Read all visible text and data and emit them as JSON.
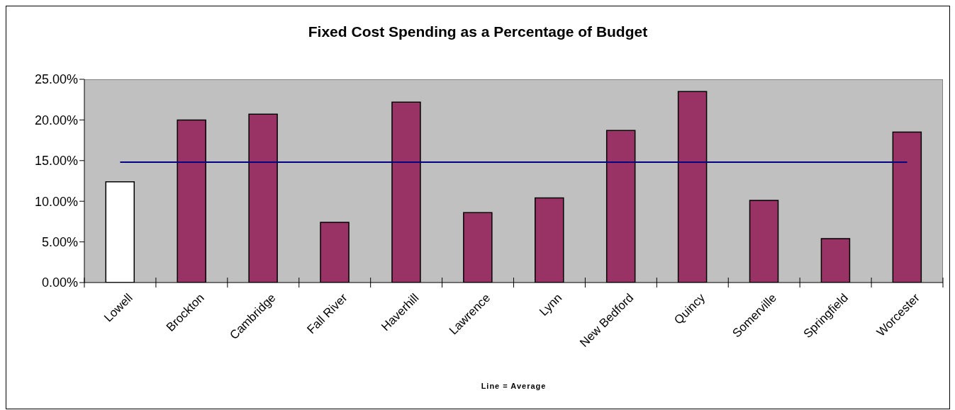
{
  "chart_data": {
    "type": "bar",
    "title": "Fixed Cost Spending as a Percentage of Budget",
    "xlabel": "Line = Average",
    "categories": [
      "Lowell",
      "Brockton",
      "Cambridge",
      "Fall River",
      "Haverhill",
      "Lawrence",
      "Lynn",
      "New Bedford",
      "Quincy",
      "Somerville",
      "Springfield",
      "Worcester"
    ],
    "series": [
      {
        "values": [
          12.4,
          20.0,
          20.7,
          7.4,
          22.2,
          8.6,
          10.4,
          18.7,
          23.5,
          10.1,
          5.4,
          18.5
        ],
        "colors": [
          "#ffffff",
          "#993366",
          "#993366",
          "#993366",
          "#993366",
          "#993366",
          "#993366",
          "#993366",
          "#993366",
          "#993366",
          "#993366",
          "#993366"
        ]
      },
      {
        "type": "line",
        "color": "#000080",
        "values": [
          14.8,
          14.8,
          14.8,
          14.8,
          14.8,
          14.8,
          14.8,
          14.8,
          14.8,
          14.8,
          14.8,
          14.8
        ]
      }
    ],
    "ylim": [
      0,
      25
    ],
    "yticks": [
      {
        "value": 0,
        "label": "0.00%"
      },
      {
        "value": 5,
        "label": "5.00%"
      },
      {
        "value": 10,
        "label": "10.00%"
      },
      {
        "value": 15,
        "label": "15.00%"
      },
      {
        "value": 20,
        "label": "20.00%"
      },
      {
        "value": 25,
        "label": "25.00%"
      }
    ],
    "marker": "none"
  }
}
